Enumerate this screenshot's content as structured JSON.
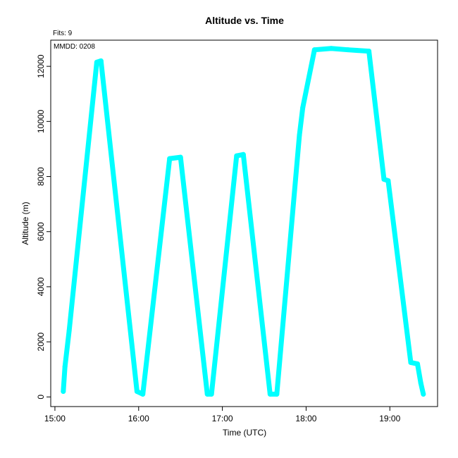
{
  "chart_data": {
    "type": "line",
    "title": "Altitude  vs. Time",
    "annotations": {
      "fits": "Fits: 9",
      "mmdd": "MMDD: 0208"
    },
    "xlabel": "Time (UTC)",
    "ylabel": "Altitude (m)",
    "x_unit": "hours UTC",
    "xlim": [
      14.95,
      19.57
    ],
    "ylim": [
      -350,
      12950
    ],
    "x_ticks": [
      {
        "value": 15,
        "label": "15:00"
      },
      {
        "value": 16,
        "label": "16:00"
      },
      {
        "value": 17,
        "label": "17:00"
      },
      {
        "value": 18,
        "label": "18:00"
      },
      {
        "value": 19,
        "label": "19:00"
      }
    ],
    "y_ticks": [
      {
        "value": 0,
        "label": "0"
      },
      {
        "value": 2000,
        "label": "2000"
      },
      {
        "value": 4000,
        "label": "4000"
      },
      {
        "value": 6000,
        "label": "6000"
      },
      {
        "value": 8000,
        "label": "8000"
      },
      {
        "value": 10000,
        "label": "10000"
      },
      {
        "value": 12000,
        "label": "12000"
      }
    ],
    "grid": false,
    "series_color": "#00FFFF",
    "series": [
      {
        "x": [
          15.1,
          15.12,
          15.17,
          15.5,
          15.55,
          15.98,
          16.05,
          16.37,
          16.5,
          16.82,
          16.87,
          17.17,
          17.25,
          17.57,
          17.65,
          17.92,
          17.96,
          18.1,
          18.3,
          18.5,
          18.75,
          18.93,
          18.98,
          19.25,
          19.33,
          19.37,
          19.4
        ],
        "y": [
          200,
          1100,
          2400,
          12150,
          12200,
          200,
          100,
          8650,
          8700,
          100,
          100,
          8750,
          8800,
          100,
          100,
          9500,
          10500,
          12600,
          12650,
          12600,
          12550,
          7900,
          7850,
          1250,
          1200,
          500,
          100
        ]
      }
    ]
  }
}
